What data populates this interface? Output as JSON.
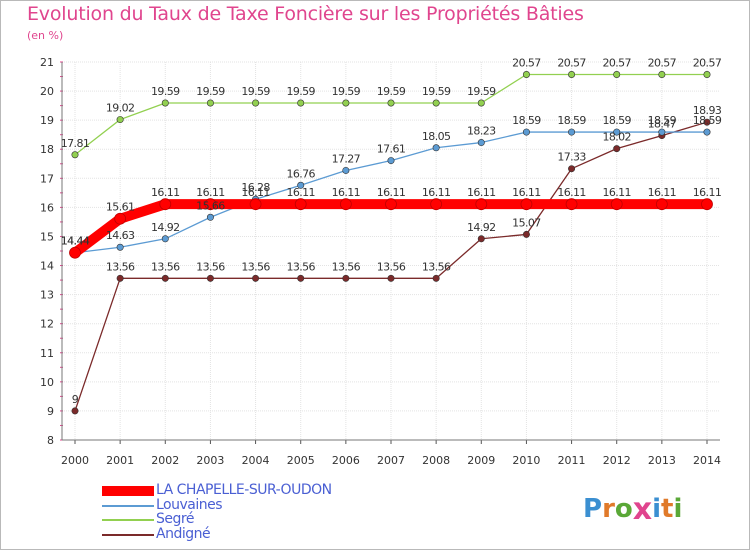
{
  "chart_data": {
    "type": "line",
    "title": "Evolution du Taux de Taxe Foncière sur les Propriétés Bâties",
    "unit_label": "(en %)",
    "x": [
      "2000",
      "2001",
      "2002",
      "2003",
      "2004",
      "2005",
      "2006",
      "2007",
      "2008",
      "2009",
      "2010",
      "2011",
      "2012",
      "2013",
      "2014"
    ],
    "ylim": [
      8,
      21
    ],
    "yticks": [
      "8",
      "9",
      "10",
      "11",
      "12",
      "13",
      "14",
      "15",
      "16",
      "17",
      "18",
      "19",
      "20",
      "21"
    ],
    "grid": true,
    "series": [
      {
        "name": "LA CHAPELLE-SUR-OUDON",
        "color": "#ff0000",
        "values": [
          14.44,
          15.61,
          16.11,
          16.11,
          16.11,
          16.11,
          16.11,
          16.11,
          16.11,
          16.11,
          16.11,
          16.11,
          16.11,
          16.11,
          16.11
        ],
        "labels": [
          "14.44",
          "15.61",
          "16.11",
          "16.11",
          "16.11",
          "16.11",
          "16.11",
          "16.11",
          "16.11",
          "16.11",
          "16.11",
          "16.11",
          "16.11",
          "16.11",
          "16.11"
        ]
      },
      {
        "name": "Louvaines",
        "color": "#5c9bd3",
        "values": [
          14.44,
          14.63,
          14.92,
          15.66,
          16.28,
          16.76,
          17.27,
          17.61,
          18.05,
          18.23,
          18.59,
          18.59,
          18.59,
          18.59,
          18.59
        ],
        "labels": [
          "14.44",
          "14.63",
          "14.92",
          "15.66",
          "16.28",
          "16.76",
          "17.27",
          "17.61",
          "18.05",
          "18.23",
          "18.59",
          "18.59",
          "18.59",
          "18.59",
          "18.59"
        ]
      },
      {
        "name": "Segré",
        "color": "#92d050",
        "values": [
          17.81,
          19.02,
          19.59,
          19.59,
          19.59,
          19.59,
          19.59,
          19.59,
          19.59,
          19.59,
          20.57,
          20.57,
          20.57,
          20.57,
          20.57
        ],
        "labels": [
          "17.81",
          "19.02",
          "19.59",
          "19.59",
          "19.59",
          "19.59",
          "19.59",
          "19.59",
          "19.59",
          "19.59",
          "20.57",
          "20.57",
          "20.57",
          "20.57",
          "20.57"
        ]
      },
      {
        "name": "Andigné",
        "color": "#7b2a2a",
        "values": [
          9,
          13.56,
          13.56,
          13.56,
          13.56,
          13.56,
          13.56,
          13.56,
          13.56,
          14.92,
          15.07,
          17.33,
          18.02,
          18.47,
          18.93
        ],
        "labels": [
          "9",
          "13.56",
          "13.56",
          "13.56",
          "13.56",
          "13.56",
          "13.56",
          "13.56",
          "13.56",
          "14.92",
          "15.07",
          "17.33",
          "18.02",
          "18.47",
          "18.93"
        ]
      }
    ]
  },
  "legend": {
    "items": [
      "LA CHAPELLE-SUR-OUDON",
      "Louvaines",
      "Segré",
      "Andigné"
    ],
    "label_color": "#4a5fd3"
  },
  "logo": {
    "letters": [
      "P",
      "r",
      "o",
      "x",
      "i",
      "t",
      "i"
    ],
    "colors": [
      "#3b8fd1",
      "#e07a2a",
      "#5aa837",
      "#e0458e",
      "#3b8fd1",
      "#e07a2a",
      "#5aa837"
    ]
  }
}
